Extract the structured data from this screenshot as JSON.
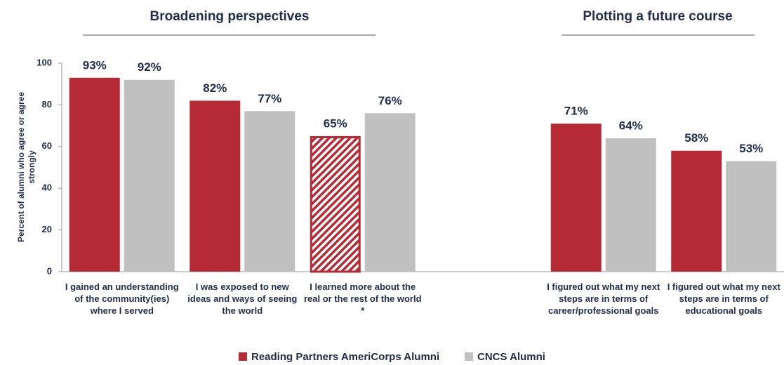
{
  "chart_data": {
    "type": "bar",
    "annotations": [
      "Broadening perspectives",
      "Plotting a future course"
    ],
    "y_label": "Percent of alumni who agree or agree strongly",
    "categories": [
      "I gained an understanding of the community(ies) where I served",
      "I was exposed to new ideas and ways of seeing the world",
      "I learned more about the real or the rest of the world *",
      null,
      "I figured out what my next steps are in terms of career/professional goals",
      "I figured out what my next steps are in terms of educational goals"
    ],
    "series": [
      {
        "name": "Reading Partners AmeriCorps Alumni",
        "color": "#b52a35",
        "values": [
          93,
          82,
          65,
          null,
          71,
          58
        ],
        "value_labels": [
          "93%",
          "82%",
          "65%",
          null,
          "71%",
          "58%"
        ],
        "hatched": [
          false,
          false,
          true,
          false,
          false,
          false
        ]
      },
      {
        "name": "CNCS Alumni",
        "color": "#c0c0c0",
        "values": [
          92,
          77,
          76,
          null,
          64,
          53
        ],
        "value_labels": [
          "92%",
          "77%",
          "76%",
          null,
          "64%",
          "53%"
        ],
        "hatched": [
          false,
          false,
          false,
          false,
          false,
          false
        ]
      }
    ],
    "ylim": [
      0,
      100
    ],
    "yticks": [
      0,
      20,
      40,
      60,
      80,
      100
    ],
    "grid": false,
    "legend": "bottom"
  }
}
